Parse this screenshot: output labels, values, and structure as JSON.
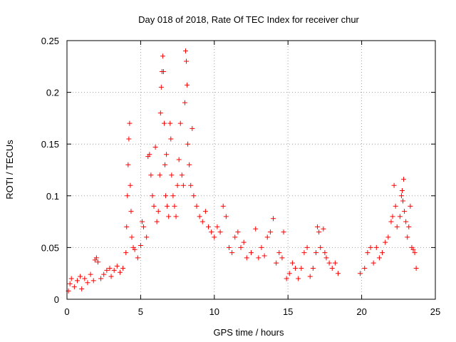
{
  "chart_data": {
    "type": "scatter",
    "title": "Day 018 of 2018, Rate Of TEC Index for receiver chur",
    "xlabel": "GPS time / hours",
    "ylabel": "ROTI / TECUs",
    "xlim": [
      0,
      25
    ],
    "ylim": [
      0,
      0.25
    ],
    "xticks": [
      0,
      5,
      10,
      15,
      20,
      25
    ],
    "yticks": [
      0,
      0.05,
      0.1,
      0.15,
      0.2,
      0.25
    ],
    "xtick_labels": [
      "0",
      "5",
      "10",
      "15",
      "20",
      "25"
    ],
    "ytick_labels": [
      "0",
      "0.05",
      "0.1",
      "0.15",
      "0.2",
      "0.25"
    ],
    "grid": true,
    "marker": "+",
    "color": "#ff0000",
    "series": [
      {
        "name": "ROTI",
        "points": [
          [
            0.1,
            0.008
          ],
          [
            0.2,
            0.015
          ],
          [
            0.3,
            0.02
          ],
          [
            0.5,
            0.012
          ],
          [
            0.7,
            0.018
          ],
          [
            0.9,
            0.022
          ],
          [
            1.0,
            0.01
          ],
          [
            1.2,
            0.02
          ],
          [
            1.4,
            0.016
          ],
          [
            1.6,
            0.024
          ],
          [
            1.8,
            0.018
          ],
          [
            1.9,
            0.038
          ],
          [
            2.0,
            0.04
          ],
          [
            2.1,
            0.036
          ],
          [
            2.3,
            0.02
          ],
          [
            2.5,
            0.024
          ],
          [
            2.7,
            0.028
          ],
          [
            2.9,
            0.03
          ],
          [
            3.0,
            0.022
          ],
          [
            3.2,
            0.028
          ],
          [
            3.4,
            0.032
          ],
          [
            3.6,
            0.026
          ],
          [
            3.8,
            0.03
          ],
          [
            4.0,
            0.045
          ],
          [
            4.05,
            0.07
          ],
          [
            4.1,
            0.1
          ],
          [
            4.15,
            0.13
          ],
          [
            4.2,
            0.155
          ],
          [
            4.25,
            0.17
          ],
          [
            4.3,
            0.11
          ],
          [
            4.35,
            0.085
          ],
          [
            4.4,
            0.06
          ],
          [
            4.5,
            0.05
          ],
          [
            4.6,
            0.048
          ],
          [
            4.8,
            0.04
          ],
          [
            5.0,
            0.052
          ],
          [
            5.1,
            0.075
          ],
          [
            5.2,
            0.07
          ],
          [
            5.4,
            0.06
          ],
          [
            5.5,
            0.138
          ],
          [
            5.6,
            0.14
          ],
          [
            5.7,
            0.12
          ],
          [
            5.8,
            0.1
          ],
          [
            5.9,
            0.09
          ],
          [
            6.0,
            0.147
          ],
          [
            6.1,
            0.075
          ],
          [
            6.2,
            0.085
          ],
          [
            6.3,
            0.12
          ],
          [
            6.35,
            0.18
          ],
          [
            6.4,
            0.205
          ],
          [
            6.45,
            0.22
          ],
          [
            6.5,
            0.235
          ],
          [
            6.55,
            0.22
          ],
          [
            6.6,
            0.17
          ],
          [
            6.65,
            0.13
          ],
          [
            6.7,
            0.1
          ],
          [
            6.75,
            0.14
          ],
          [
            6.8,
            0.09
          ],
          [
            6.9,
            0.08
          ],
          [
            7.0,
            0.17
          ],
          [
            7.05,
            0.155
          ],
          [
            7.1,
            0.12
          ],
          [
            7.2,
            0.1
          ],
          [
            7.3,
            0.09
          ],
          [
            7.4,
            0.08
          ],
          [
            7.5,
            0.11
          ],
          [
            7.6,
            0.135
          ],
          [
            7.7,
            0.17
          ],
          [
            7.8,
            0.12
          ],
          [
            7.9,
            0.11
          ],
          [
            8.0,
            0.19
          ],
          [
            8.05,
            0.24
          ],
          [
            8.1,
            0.23
          ],
          [
            8.15,
            0.207
          ],
          [
            8.2,
            0.15
          ],
          [
            8.3,
            0.13
          ],
          [
            8.4,
            0.11
          ],
          [
            8.5,
            0.165
          ],
          [
            8.6,
            0.1
          ],
          [
            8.8,
            0.09
          ],
          [
            9.0,
            0.08
          ],
          [
            9.2,
            0.075
          ],
          [
            9.4,
            0.085
          ],
          [
            9.6,
            0.07
          ],
          [
            9.8,
            0.065
          ],
          [
            10.0,
            0.06
          ],
          [
            10.2,
            0.07
          ],
          [
            10.4,
            0.065
          ],
          [
            10.6,
            0.09
          ],
          [
            10.8,
            0.08
          ],
          [
            11.0,
            0.05
          ],
          [
            11.2,
            0.045
          ],
          [
            11.4,
            0.06
          ],
          [
            11.6,
            0.065
          ],
          [
            11.8,
            0.05
          ],
          [
            12.0,
            0.055
          ],
          [
            12.2,
            0.04
          ],
          [
            12.5,
            0.045
          ],
          [
            12.8,
            0.068
          ],
          [
            13.0,
            0.04
          ],
          [
            13.2,
            0.05
          ],
          [
            13.4,
            0.042
          ],
          [
            13.6,
            0.06
          ],
          [
            13.8,
            0.065
          ],
          [
            14.0,
            0.078
          ],
          [
            14.2,
            0.035
          ],
          [
            14.4,
            0.045
          ],
          [
            14.6,
            0.04
          ],
          [
            14.7,
            0.065
          ],
          [
            14.9,
            0.02
          ],
          [
            15.1,
            0.025
          ],
          [
            15.3,
            0.035
          ],
          [
            15.5,
            0.03
          ],
          [
            15.7,
            0.02
          ],
          [
            15.9,
            0.03
          ],
          [
            16.1,
            0.045
          ],
          [
            16.3,
            0.05
          ],
          [
            16.5,
            0.022
          ],
          [
            16.7,
            0.03
          ],
          [
            16.9,
            0.045
          ],
          [
            17.0,
            0.07
          ],
          [
            17.1,
            0.065
          ],
          [
            17.2,
            0.05
          ],
          [
            17.4,
            0.068
          ],
          [
            17.5,
            0.045
          ],
          [
            17.6,
            0.04
          ],
          [
            17.8,
            0.035
          ],
          [
            18.0,
            0.03
          ],
          [
            18.2,
            0.035
          ],
          [
            18.4,
            0.025
          ],
          [
            19.9,
            0.025
          ],
          [
            20.2,
            0.03
          ],
          [
            20.4,
            0.045
          ],
          [
            20.6,
            0.05
          ],
          [
            20.8,
            0.035
          ],
          [
            21.0,
            0.05
          ],
          [
            21.2,
            0.04
          ],
          [
            21.4,
            0.045
          ],
          [
            21.6,
            0.055
          ],
          [
            21.8,
            0.06
          ],
          [
            22.0,
            0.075
          ],
          [
            22.1,
            0.08
          ],
          [
            22.2,
            0.11
          ],
          [
            22.3,
            0.09
          ],
          [
            22.4,
            0.07
          ],
          [
            22.6,
            0.08
          ],
          [
            22.7,
            0.1
          ],
          [
            22.75,
            0.105
          ],
          [
            22.8,
            0.095
          ],
          [
            22.85,
            0.116
          ],
          [
            22.9,
            0.085
          ],
          [
            23.0,
            0.075
          ],
          [
            23.1,
            0.06
          ],
          [
            23.2,
            0.07
          ],
          [
            23.3,
            0.09
          ],
          [
            23.4,
            0.05
          ],
          [
            23.5,
            0.048
          ],
          [
            23.6,
            0.045
          ],
          [
            23.7,
            0.03
          ]
        ]
      }
    ]
  }
}
